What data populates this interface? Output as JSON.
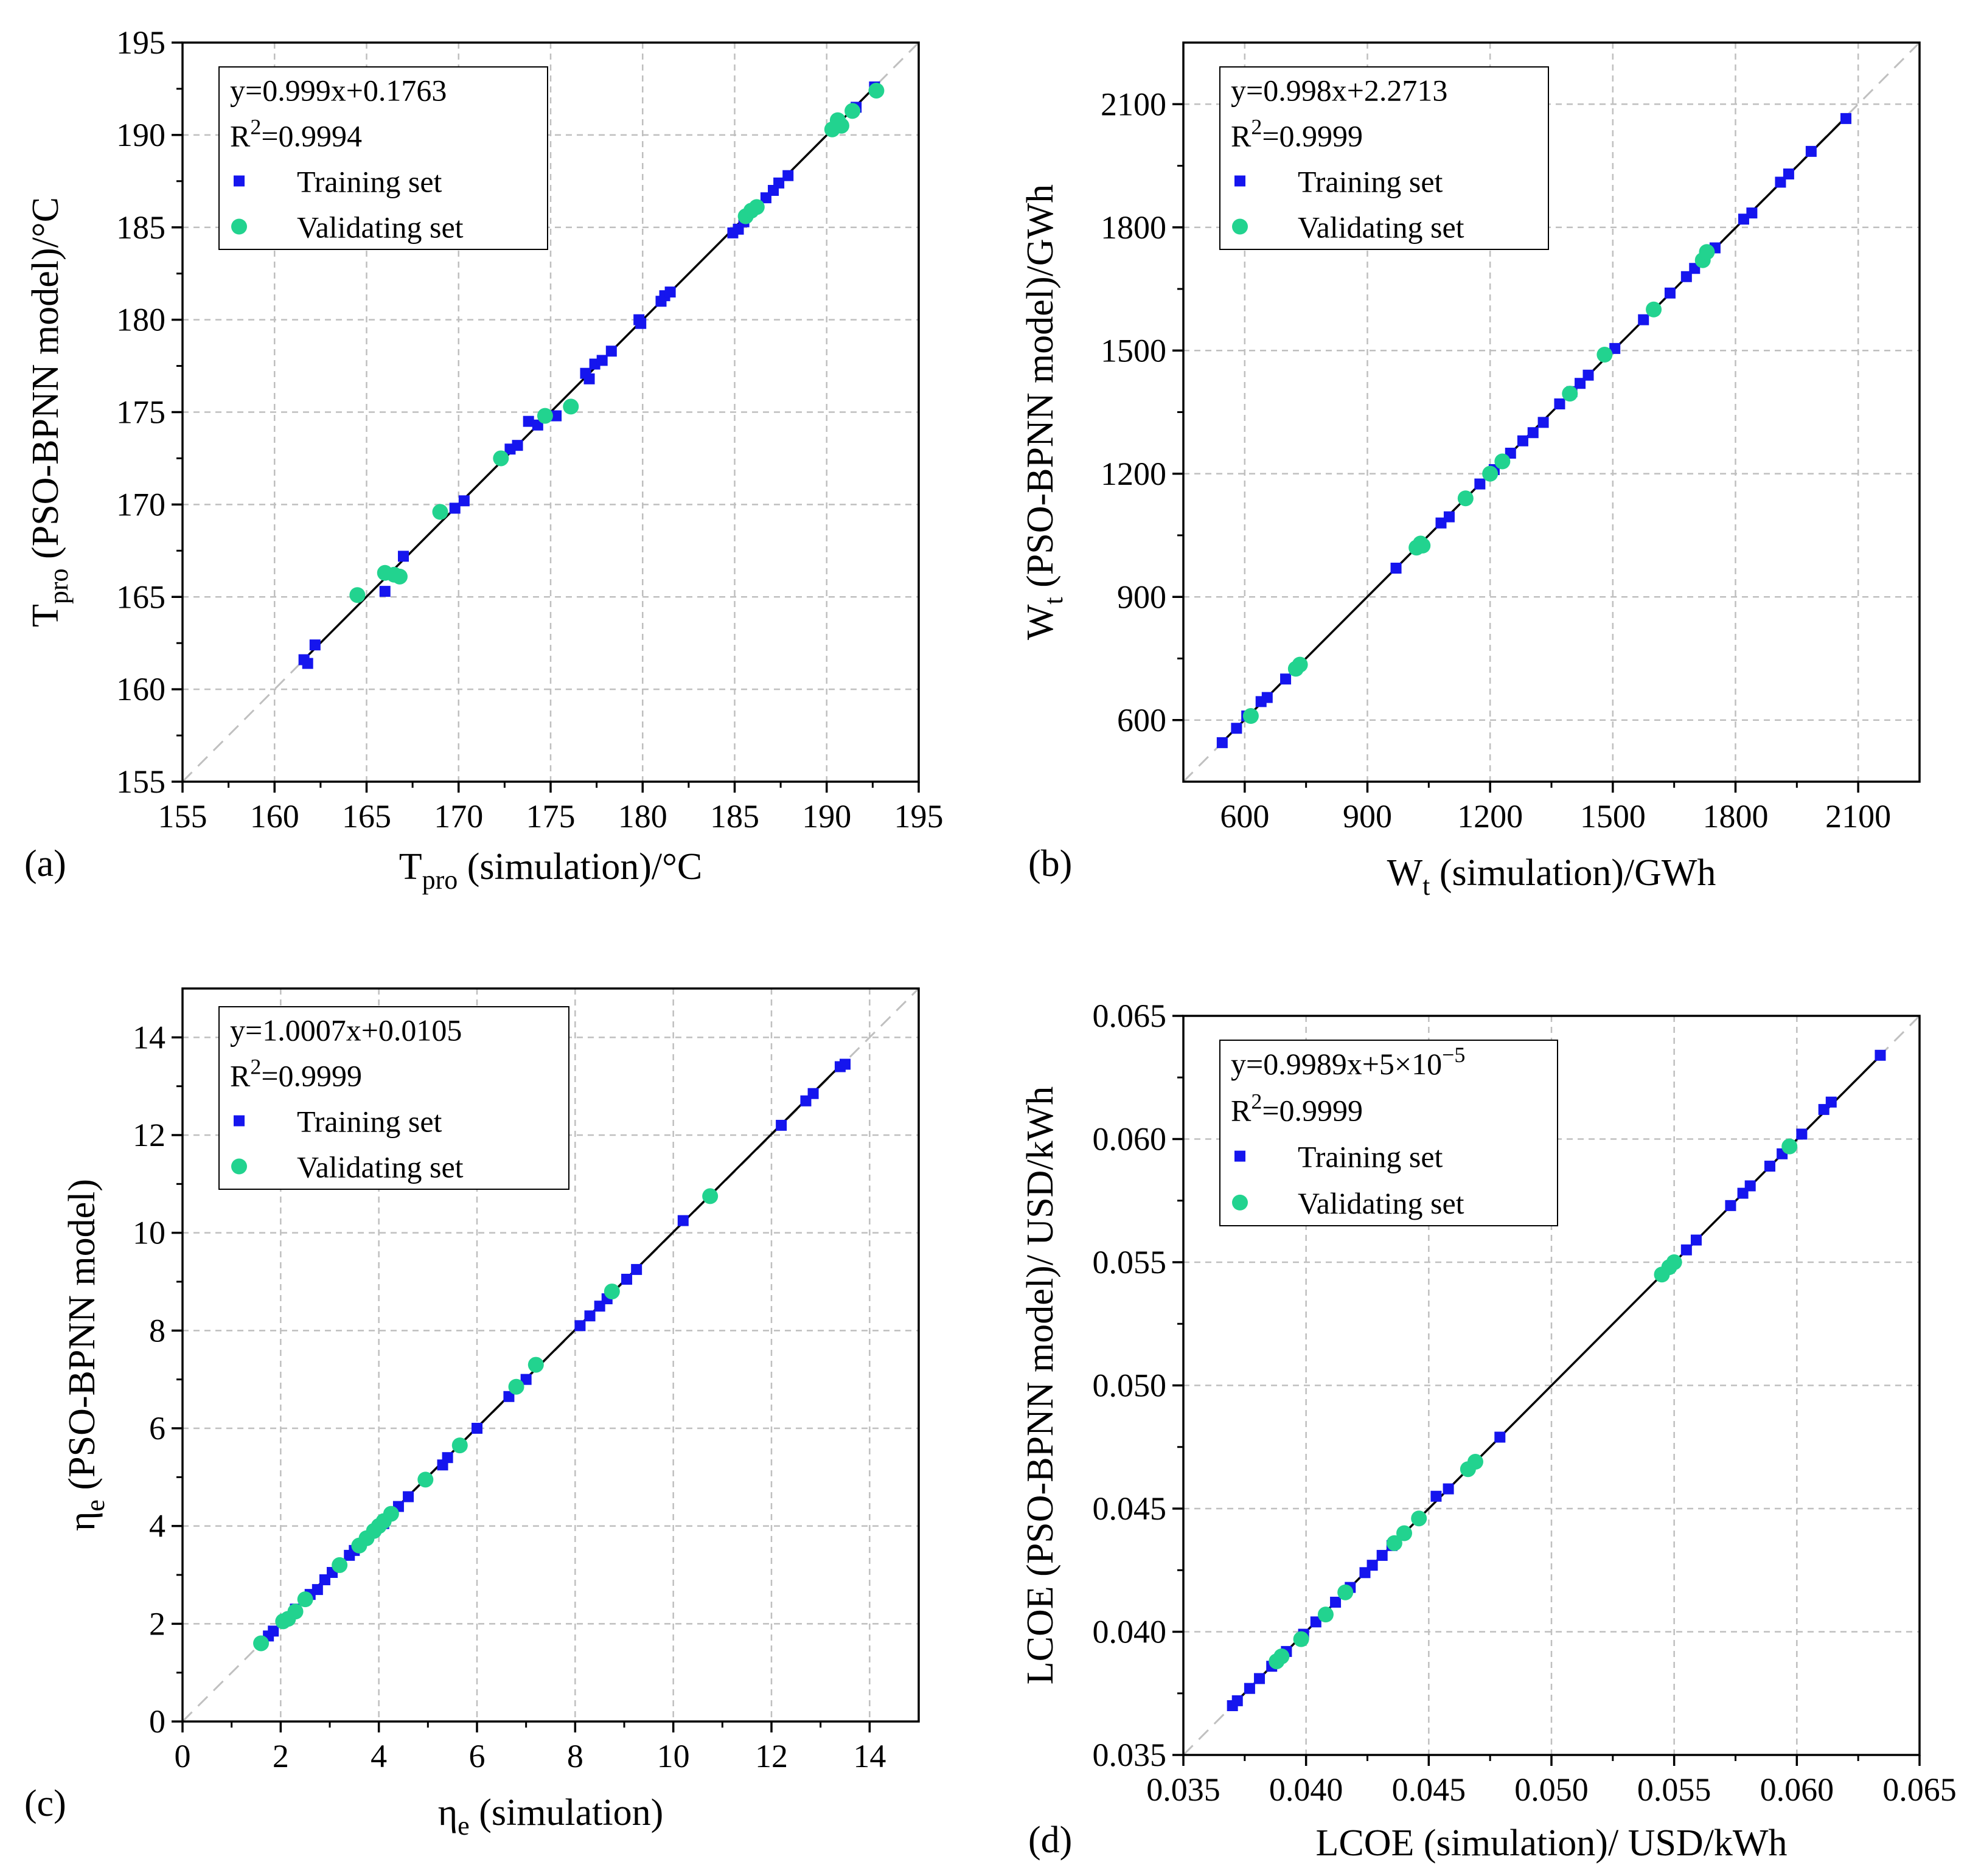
{
  "colors": {
    "training": "#1515ee",
    "validating": "#22d38f",
    "fit_line": "#000000",
    "diagonal": "#c0c0c0",
    "grid": "#bfbfbf"
  },
  "chart_data": [
    {
      "panel": "(a)",
      "type": "scatter",
      "xlabel": {
        "main": "T",
        "sub": "pro",
        "rest": " (simulation)/°C"
      },
      "ylabel": {
        "main": "T",
        "sub": "pro",
        "rest": "  (PSO-BPNN model)/°C"
      },
      "xlim": [
        155,
        195
      ],
      "ylim": [
        155,
        195
      ],
      "xticks": [
        "155",
        "160",
        "165",
        "170",
        "175",
        "180",
        "185",
        "190",
        "195"
      ],
      "yticks": [
        "155",
        "160",
        "165",
        "170",
        "175",
        "180",
        "185",
        "190",
        "195"
      ],
      "grid": true,
      "fit": {
        "slope": 0.999,
        "intercept": 0.1763
      },
      "legend": {
        "equation": "y=0.999x+0.1763",
        "r2_prefix": "R",
        "r2_sup": "2",
        "r2_value": "=0.9994",
        "training_label": "Training set",
        "validating_label": "Validating set",
        "position": "top-left"
      },
      "series": [
        {
          "name": "Training set",
          "marker": "square",
          "points": [
            [
              161.6,
              161.6
            ],
            [
              161.8,
              161.4
            ],
            [
              162.2,
              162.4
            ],
            [
              166.0,
              165.3
            ],
            [
              167.0,
              167.2
            ],
            [
              169.8,
              169.8
            ],
            [
              170.3,
              170.2
            ],
            [
              172.8,
              173.0
            ],
            [
              173.2,
              173.2
            ],
            [
              173.8,
              174.5
            ],
            [
              174.3,
              174.3
            ],
            [
              175.3,
              174.8
            ],
            [
              176.9,
              177.1
            ],
            [
              177.1,
              176.8
            ],
            [
              177.4,
              177.6
            ],
            [
              177.8,
              177.8
            ],
            [
              178.3,
              178.3
            ],
            [
              179.8,
              180.0
            ],
            [
              179.9,
              179.8
            ],
            [
              181.0,
              181.0
            ],
            [
              181.2,
              181.3
            ],
            [
              181.5,
              181.5
            ],
            [
              184.9,
              184.7
            ],
            [
              185.2,
              184.9
            ],
            [
              185.5,
              185.3
            ],
            [
              186.7,
              186.6
            ],
            [
              187.1,
              187.0
            ],
            [
              187.4,
              187.4
            ],
            [
              187.9,
              187.8
            ],
            [
              191.6,
              191.5
            ],
            [
              192.6,
              192.6
            ]
          ]
        },
        {
          "name": "Validating set",
          "marker": "circle",
          "points": [
            [
              164.5,
              165.1
            ],
            [
              166.0,
              166.3
            ],
            [
              166.5,
              166.2
            ],
            [
              166.8,
              166.1
            ],
            [
              169.0,
              169.6
            ],
            [
              172.3,
              172.5
            ],
            [
              174.7,
              174.8
            ],
            [
              176.1,
              175.3
            ],
            [
              185.6,
              185.6
            ],
            [
              185.9,
              185.9
            ],
            [
              186.2,
              186.1
            ],
            [
              190.3,
              190.3
            ],
            [
              190.6,
              190.8
            ],
            [
              190.8,
              190.5
            ],
            [
              191.4,
              191.3
            ],
            [
              192.7,
              192.4
            ]
          ]
        }
      ]
    },
    {
      "panel": "(b)",
      "type": "scatter",
      "xlabel": {
        "main": "W",
        "sub": "t",
        "rest": " (simulation)/GWh"
      },
      "ylabel": {
        "main": "W",
        "sub": "t",
        "rest": " (PSO-BPNN model)/GWh"
      },
      "xlim": [
        450,
        2250
      ],
      "ylim": [
        450,
        2250
      ],
      "xticks": [
        "600",
        "900",
        "1200",
        "1500",
        "1800",
        "2100"
      ],
      "yticks": [
        "600",
        "900",
        "1200",
        "1500",
        "1800",
        "2100"
      ],
      "grid": true,
      "fit": {
        "slope": 0.998,
        "intercept": 2.2713
      },
      "legend": {
        "equation": "y=0.998x+2.2713",
        "r2_prefix": "R",
        "r2_sup": "2",
        "r2_value": "=0.9999",
        "training_label": "Training set",
        "validating_label": "Validating set",
        "position": "top-left"
      },
      "series": [
        {
          "name": "Training set",
          "marker": "square",
          "points": [
            [
              545,
              545
            ],
            [
              580,
              580
            ],
            [
              605,
              610
            ],
            [
              640,
              645
            ],
            [
              655,
              655
            ],
            [
              700,
              700
            ],
            [
              970,
              970
            ],
            [
              1080,
              1080
            ],
            [
              1100,
              1095
            ],
            [
              1175,
              1175
            ],
            [
              1210,
              1210
            ],
            [
              1250,
              1250
            ],
            [
              1280,
              1280
            ],
            [
              1305,
              1300
            ],
            [
              1330,
              1325
            ],
            [
              1370,
              1370
            ],
            [
              1400,
              1400
            ],
            [
              1420,
              1420
            ],
            [
              1440,
              1440
            ],
            [
              1505,
              1505
            ],
            [
              1575,
              1575
            ],
            [
              1640,
              1640
            ],
            [
              1680,
              1680
            ],
            [
              1700,
              1700
            ],
            [
              1750,
              1750
            ],
            [
              1820,
              1820
            ],
            [
              1840,
              1835
            ],
            [
              1910,
              1910
            ],
            [
              1930,
              1930
            ],
            [
              1985,
              1985
            ],
            [
              2070,
              2065
            ]
          ]
        },
        {
          "name": "Validating set",
          "marker": "circle",
          "points": [
            [
              615,
              610
            ],
            [
              725,
              725
            ],
            [
              735,
              735
            ],
            [
              1020,
              1020
            ],
            [
              1030,
              1030
            ],
            [
              1035,
              1025
            ],
            [
              1140,
              1140
            ],
            [
              1200,
              1200
            ],
            [
              1230,
              1230
            ],
            [
              1395,
              1395
            ],
            [
              1480,
              1490
            ],
            [
              1600,
              1600
            ],
            [
              1720,
              1720
            ],
            [
              1730,
              1740
            ]
          ]
        }
      ]
    },
    {
      "panel": "(c)",
      "type": "scatter",
      "xlabel": {
        "main": "η",
        "sub": "e",
        "rest": " (simulation)"
      },
      "ylabel": {
        "main": "η",
        "sub": "e",
        "rest": " (PSO-BPNN model)"
      },
      "xlim": [
        0,
        15
      ],
      "ylim": [
        0,
        15
      ],
      "xticks": [
        "0",
        "2",
        "4",
        "6",
        "8",
        "10",
        "12",
        "14"
      ],
      "yticks": [
        "0",
        "2",
        "4",
        "6",
        "8",
        "10",
        "12",
        "14"
      ],
      "grid": true,
      "fit": {
        "slope": 1.0007,
        "intercept": 0.0105
      },
      "legend": {
        "equation": "y=1.0007x+0.0105",
        "r2_prefix": "R",
        "r2_sup": "2",
        "r2_value": "=0.9999",
        "training_label": "Training set",
        "validating_label": "Validating set",
        "position": "top-left"
      },
      "series": [
        {
          "name": "Training set",
          "marker": "square",
          "points": [
            [
              1.75,
              1.75
            ],
            [
              1.85,
              1.85
            ],
            [
              2.3,
              2.3
            ],
            [
              2.6,
              2.6
            ],
            [
              2.75,
              2.7
            ],
            [
              2.9,
              2.9
            ],
            [
              3.05,
              3.05
            ],
            [
              3.4,
              3.4
            ],
            [
              3.5,
              3.5
            ],
            [
              4.1,
              4.05
            ],
            [
              4.4,
              4.4
            ],
            [
              4.6,
              4.6
            ],
            [
              5.3,
              5.25
            ],
            [
              5.4,
              5.4
            ],
            [
              6.0,
              6.0
            ],
            [
              6.65,
              6.65
            ],
            [
              7.0,
              7.0
            ],
            [
              8.1,
              8.1
            ],
            [
              8.3,
              8.3
            ],
            [
              8.5,
              8.5
            ],
            [
              8.65,
              8.65
            ],
            [
              9.05,
              9.05
            ],
            [
              9.25,
              9.25
            ],
            [
              10.2,
              10.25
            ],
            [
              12.2,
              12.2
            ],
            [
              12.7,
              12.7
            ],
            [
              12.85,
              12.85
            ],
            [
              13.4,
              13.4
            ],
            [
              13.5,
              13.45
            ]
          ]
        },
        {
          "name": "Validating set",
          "marker": "circle",
          "points": [
            [
              1.6,
              1.6
            ],
            [
              2.05,
              2.05
            ],
            [
              2.15,
              2.1
            ],
            [
              2.3,
              2.25
            ],
            [
              2.5,
              2.5
            ],
            [
              3.2,
              3.2
            ],
            [
              3.6,
              3.6
            ],
            [
              3.75,
              3.75
            ],
            [
              3.9,
              3.9
            ],
            [
              4.0,
              4.0
            ],
            [
              4.1,
              4.1
            ],
            [
              4.25,
              4.25
            ],
            [
              4.95,
              4.95
            ],
            [
              5.65,
              5.65
            ],
            [
              6.8,
              6.85
            ],
            [
              7.2,
              7.3
            ],
            [
              8.75,
              8.8
            ],
            [
              10.75,
              10.75
            ]
          ]
        }
      ]
    },
    {
      "panel": "(d)",
      "type": "scatter",
      "xlabel": {
        "main": "LCOE (simulation)/ USD/kWh",
        "sub": "",
        "rest": ""
      },
      "ylabel": {
        "main": "LCOE (PSO-BPNN model)/ USD/kWh",
        "sub": "",
        "rest": ""
      },
      "xlim": [
        0.035,
        0.065
      ],
      "ylim": [
        0.035,
        0.065
      ],
      "xticks": [
        "0.035",
        "0.040",
        "0.045",
        "0.050",
        "0.055",
        "0.060",
        "0.065"
      ],
      "yticks": [
        "0.035",
        "0.040",
        "0.045",
        "0.050",
        "0.055",
        "0.060",
        "0.065"
      ],
      "grid": true,
      "fit": {
        "slope": 0.9989,
        "intercept": 5e-05
      },
      "legend": {
        "equation": "y=0.9989x+5×10",
        "equation_sup": "−5",
        "r2_prefix": "R",
        "r2_sup": "2",
        "r2_value": "=0.9999",
        "training_label": "Training set",
        "validating_label": "Validating set",
        "position": "top-left"
      },
      "series": [
        {
          "name": "Training set",
          "marker": "square",
          "points": [
            [
              0.037,
              0.037
            ],
            [
              0.0372,
              0.0372
            ],
            [
              0.0377,
              0.0377
            ],
            [
              0.0381,
              0.0381
            ],
            [
              0.0386,
              0.0386
            ],
            [
              0.0392,
              0.0392
            ],
            [
              0.0399,
              0.0399
            ],
            [
              0.0404,
              0.0404
            ],
            [
              0.0412,
              0.0412
            ],
            [
              0.0418,
              0.0418
            ],
            [
              0.0424,
              0.0424
            ],
            [
              0.0427,
              0.0427
            ],
            [
              0.0431,
              0.0431
            ],
            [
              0.0435,
              0.0435
            ],
            [
              0.0453,
              0.0455
            ],
            [
              0.0458,
              0.0458
            ],
            [
              0.0479,
              0.0479
            ],
            [
              0.0555,
              0.0555
            ],
            [
              0.0559,
              0.0559
            ],
            [
              0.0573,
              0.0573
            ],
            [
              0.0578,
              0.0578
            ],
            [
              0.0581,
              0.0581
            ],
            [
              0.0589,
              0.0589
            ],
            [
              0.0594,
              0.0594
            ],
            [
              0.0602,
              0.0602
            ],
            [
              0.0611,
              0.0612
            ],
            [
              0.0614,
              0.0615
            ],
            [
              0.0634,
              0.0634
            ]
          ]
        },
        {
          "name": "Validating set",
          "marker": "circle",
          "points": [
            [
              0.0388,
              0.0388
            ],
            [
              0.039,
              0.039
            ],
            [
              0.0398,
              0.0397
            ],
            [
              0.0408,
              0.0407
            ],
            [
              0.0416,
              0.0416
            ],
            [
              0.0436,
              0.0436
            ],
            [
              0.044,
              0.044
            ],
            [
              0.0446,
              0.0446
            ],
            [
              0.0466,
              0.0466
            ],
            [
              0.0469,
              0.0469
            ],
            [
              0.0545,
              0.0545
            ],
            [
              0.0548,
              0.0548
            ],
            [
              0.055,
              0.055
            ],
            [
              0.0597,
              0.0597
            ]
          ]
        }
      ]
    }
  ]
}
